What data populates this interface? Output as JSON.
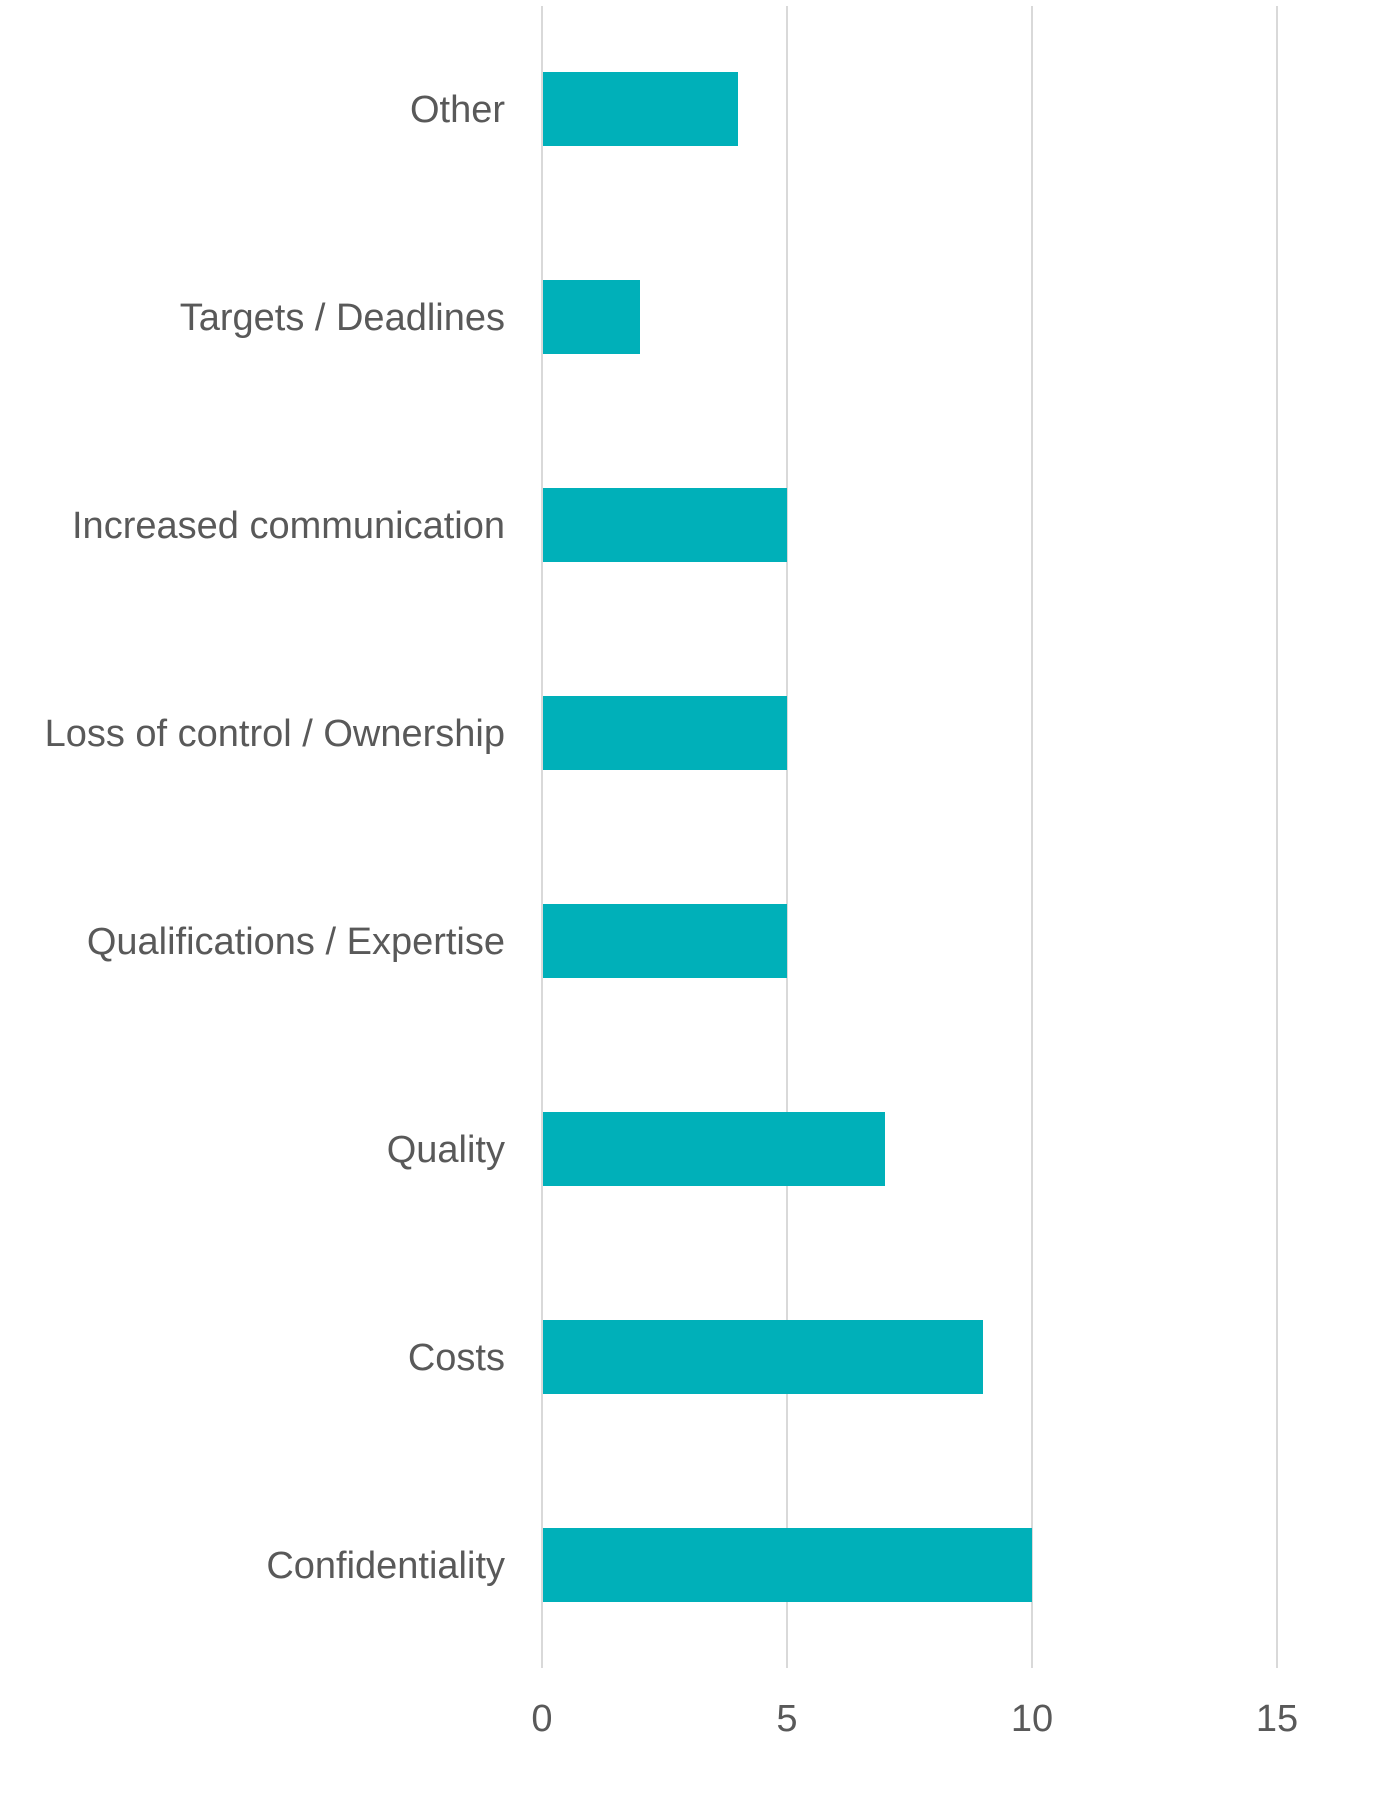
{
  "chart_data": {
    "type": "bar",
    "orientation": "horizontal",
    "categories": [
      "Other",
      "Targets / Deadlines",
      "Increased communication",
      "Loss of control / Ownership",
      "Qualifications / Expertise",
      "Quality",
      "Costs",
      "Confidentiality"
    ],
    "values": [
      4,
      2,
      5,
      5,
      5,
      7,
      9,
      10
    ],
    "xlim": [
      0,
      15
    ],
    "xticks": [
      "0",
      "5",
      "10",
      "15"
    ],
    "grid": "vertical",
    "legend": "none",
    "title": "",
    "xlabel": "",
    "ylabel": "",
    "colors": {
      "bar": "#00b0b9",
      "grid": "#d9d9d9",
      "text": "#595959"
    }
  }
}
